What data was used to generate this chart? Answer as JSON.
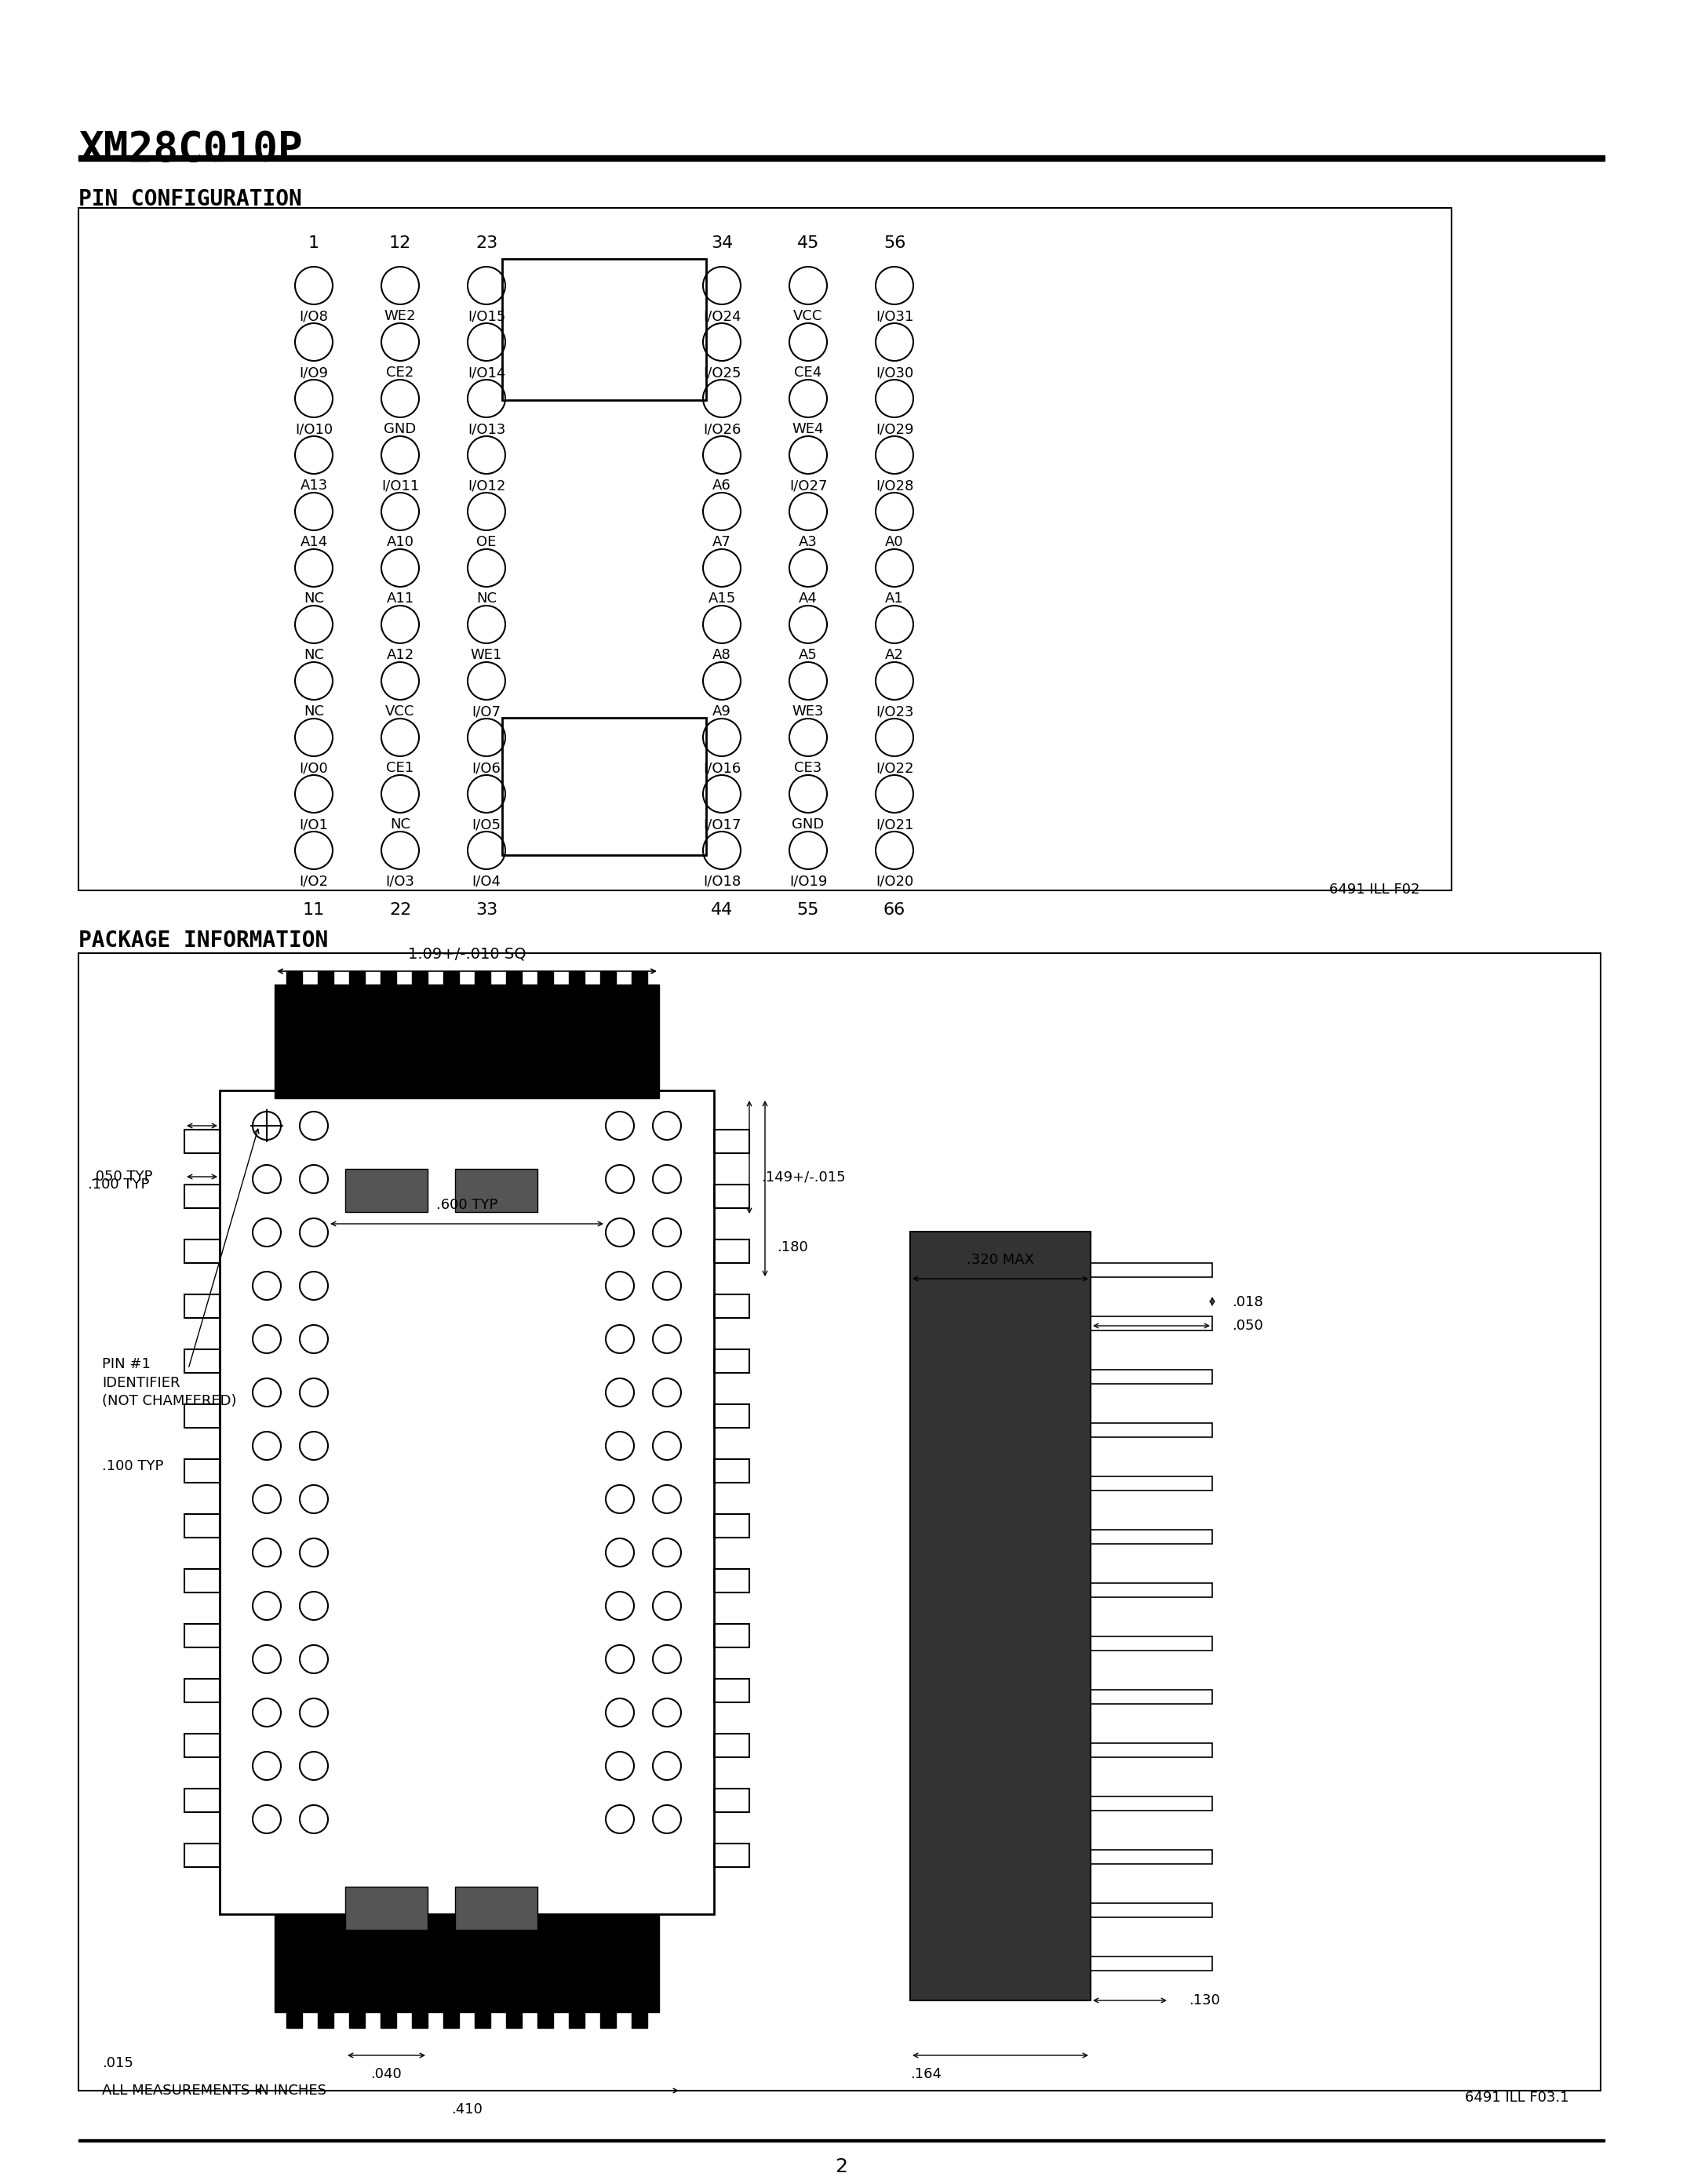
{
  "title": "XM28C010P",
  "page_number": "2",
  "section1_title": "PIN CONFIGURATION",
  "section2_title": "PACKAGE INFORMATION",
  "bg_color": "#ffffff",
  "text_color": "#000000",
  "pin_config": {
    "left_pins": [
      [
        "I/O8",
        "WE2",
        "I/O15"
      ],
      [
        "I/O9",
        "CE2",
        "I/O14"
      ],
      [
        "I/O10",
        "GND",
        "I/O13"
      ],
      [
        "A13",
        "I/O11",
        "I/O12"
      ],
      [
        "A14",
        "A10",
        "OE"
      ],
      [
        "NC",
        "A11",
        "NC"
      ],
      [
        "NC",
        "A12",
        "WE1"
      ],
      [
        "NC",
        "VCC",
        "I/O7"
      ],
      [
        "I/O0",
        "CE1",
        "I/O6"
      ],
      [
        "I/O1",
        "NC",
        "I/O5"
      ],
      [
        "I/O2",
        "I/O3",
        "I/O4"
      ]
    ],
    "right_pins": [
      [
        "I/O24",
        "VCC",
        "I/O31"
      ],
      [
        "I/O25",
        "CE4",
        "I/O30"
      ],
      [
        "I/O26",
        "WE4",
        "I/O29"
      ],
      [
        "A6",
        "I/O27",
        "I/O28"
      ],
      [
        "A7",
        "A3",
        "A0"
      ],
      [
        "A15",
        "A4",
        "A1"
      ],
      [
        "A8",
        "A5",
        "A2"
      ],
      [
        "A9",
        "WE3",
        "I/O23"
      ],
      [
        "I/O16",
        "CE3",
        "I/O22"
      ],
      [
        "I/O17",
        "GND",
        "I/O21"
      ],
      [
        "I/O18",
        "I/O19",
        "I/O20"
      ]
    ],
    "top_left_labels": [
      "1",
      "12",
      "23"
    ],
    "top_right_labels": [
      "34",
      "45",
      "56"
    ],
    "bottom_left_labels": [
      "11",
      "22",
      "33"
    ],
    "bottom_right_labels": [
      "44",
      "55",
      "66"
    ]
  },
  "figure_id1": "6491 ILL F02",
  "figure_id2": "6491 ILL F03.1",
  "pkg_measurements": {
    "sq_label": "1.09+/-.010 SQ",
    "dim_050": ".050 TYP",
    "dim_100_1": ".100 TYP",
    "dim_600": ".600 TYP",
    "dim_040": ".040",
    "dim_410": ".410",
    "dim_015": ".015",
    "dim_149": ".149+/-.015",
    "dim_180": ".180",
    "dim_320": ".320 MAX",
    "dim_050b": ".050",
    "dim_018": ".018",
    "dim_130": ".130",
    "dim_164": ".164",
    "dim_100_2": ".100 TYP",
    "pin1_label": "PIN #1\nIDENTIFIER\n(NOT CHAMFERED)"
  }
}
